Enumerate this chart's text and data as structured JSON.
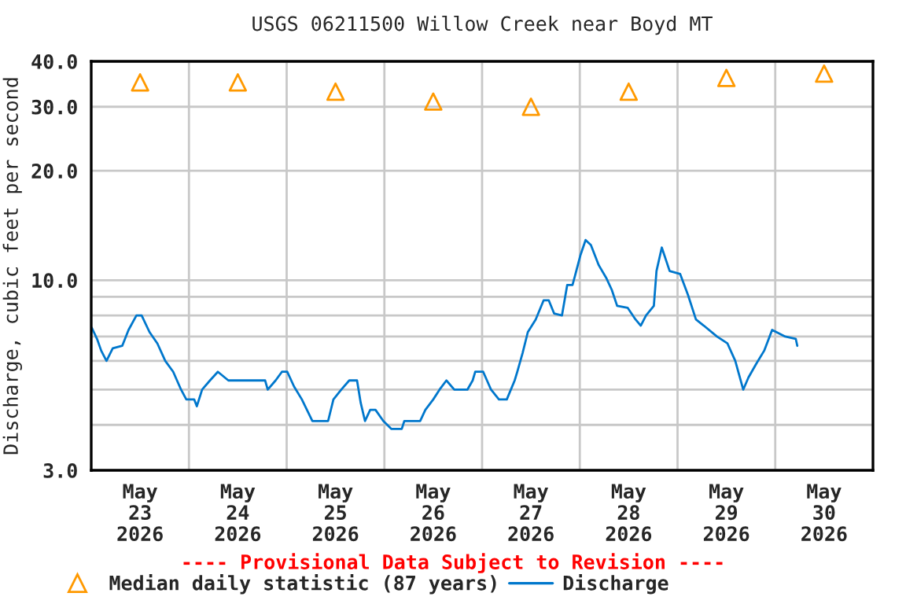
{
  "chart_data": {
    "type": "line",
    "title": "USGS 06211500 Willow Creek near Boyd MT",
    "ylabel": "Discharge, cubic feet per second",
    "annotations": [
      "---- Provisional Data Subject to Revision ----"
    ],
    "log": "y",
    "grid": true,
    "legend": "bottom",
    "xlim": [
      "2026-05-23",
      "2026-05-31"
    ],
    "xticks": [
      {
        "value": "2026-05-23T12:00",
        "label": "May\n23\n2026"
      },
      {
        "value": "2026-05-24T12:00",
        "label": "May\n24\n2026"
      },
      {
        "value": "2026-05-25T12:00",
        "label": "May\n25\n2026"
      },
      {
        "value": "2026-05-26T12:00",
        "label": "May\n26\n2026"
      },
      {
        "value": "2026-05-27T12:00",
        "label": "May\n27\n2026"
      },
      {
        "value": "2026-05-28T12:00",
        "label": "May\n28\n2026"
      },
      {
        "value": "2026-05-29T12:00",
        "label": "May\n29\n2026"
      },
      {
        "value": "2026-05-30T12:00",
        "label": "May\n30\n2026"
      },
      {
        "value": "2026-05-24",
        "label": null
      },
      {
        "value": "2026-05-25",
        "label": null
      },
      {
        "value": "2026-05-26",
        "label": null
      },
      {
        "value": "2026-05-27",
        "label": null
      },
      {
        "value": "2026-05-28",
        "label": null
      },
      {
        "value": "2026-05-29",
        "label": null
      },
      {
        "value": "2026-05-30",
        "label": null
      }
    ],
    "ylim": [
      3,
      40
    ],
    "yticks": [
      {
        "value": 3,
        "label": "3.0"
      },
      {
        "value": 4,
        "label": null
      },
      {
        "value": 5,
        "label": null
      },
      {
        "value": 6,
        "label": null
      },
      {
        "value": 7,
        "label": null
      },
      {
        "value": 8,
        "label": null
      },
      {
        "value": 9,
        "label": null
      },
      {
        "value": 10,
        "label": "10.0"
      },
      {
        "value": 20,
        "label": "20.0"
      },
      {
        "value": 30,
        "label": "30.0"
      },
      {
        "value": 40,
        "label": "40.0"
      }
    ],
    "series": [
      {
        "name": "Median daily statistic (87 years)",
        "type": "scatter",
        "marker": "triangle",
        "color": "#ff9900",
        "x": [
          "2026-05-23T12:00",
          "2026-05-24T12:00",
          "2026-05-25T12:00",
          "2026-05-26T12:00",
          "2026-05-27T12:00",
          "2026-05-28T12:00",
          "2026-05-29T12:00",
          "2026-05-30T12:00"
        ],
        "values": [
          35,
          35,
          33,
          31,
          30,
          33,
          36,
          37
        ]
      },
      {
        "name": "Discharge",
        "marker": "none",
        "line_style": "solid",
        "color": "#0077cc",
        "x": [
          "2026-05-23T00:08",
          "2026-05-23T01:25",
          "2026-05-23T02:27",
          "2026-05-23T03:45",
          "2026-05-23T05:17",
          "2026-05-23T07:37",
          "2026-05-23T09:10",
          "2026-05-23T11:06",
          "2026-05-23T12:23",
          "2026-05-23T14:19",
          "2026-05-23T16:15",
          "2026-05-23T18:11",
          "2026-05-23T20:08",
          "2026-05-23T22:04",
          "2026-05-23T23:21",
          "2026-05-24T01:17",
          "2026-05-24T01:56",
          "2026-05-24T03:14",
          "2026-05-24T05:10",
          "2026-05-24T07:06",
          "2026-05-24T09:41",
          "2026-05-24T13:33",
          "2026-05-24T18:43",
          "2026-05-24T19:21",
          "2026-05-24T21:17",
          "2026-05-24T22:50",
          "2026-05-25T00:08",
          "2026-05-25T01:49",
          "2026-05-25T03:44",
          "2026-05-25T06:19",
          "2026-05-25T10:11",
          "2026-05-25T11:29",
          "2026-05-25T13:25",
          "2026-05-25T15:22",
          "2026-05-25T17:17",
          "2026-05-25T18:11",
          "2026-05-25T19:14",
          "2026-05-25T20:31",
          "2026-05-25T21:49",
          "2026-05-25T23:44",
          "2026-05-26T01:41",
          "2026-05-26T04:16",
          "2026-05-26T04:54",
          "2026-05-26T08:47",
          "2026-05-26T10:04",
          "2026-05-26T12:00",
          "2026-05-26T13:33",
          "2026-05-26T15:14",
          "2026-05-26T17:10",
          "2026-05-26T20:23",
          "2026-05-26T21:41",
          "2026-05-26T22:19",
          "2026-05-27T00:16",
          "2026-05-27T02:12",
          "2026-05-27T04:08",
          "2026-05-27T06:04",
          "2026-05-27T08:00",
          "2026-05-27T08:39",
          "2026-05-27T09:56",
          "2026-05-27T11:14",
          "2026-05-27T13:10",
          "2026-05-27T15:06",
          "2026-05-27T16:23",
          "2026-05-27T17:41",
          "2026-05-27T19:37",
          "2026-05-27T20:54",
          "2026-05-27T22:12",
          "2026-05-27T22:50",
          "2026-05-28T00:08",
          "2026-05-28T01:25",
          "2026-05-28T02:43",
          "2026-05-28T04:39",
          "2026-05-28T06:35",
          "2026-05-28T07:52",
          "2026-05-28T09:10",
          "2026-05-28T11:44",
          "2026-05-28T13:41",
          "2026-05-28T14:58",
          "2026-05-28T16:16",
          "2026-05-28T18:11",
          "2026-05-28T18:50",
          "2026-05-28T20:08",
          "2026-05-28T22:04",
          "2026-05-29T00:39",
          "2026-05-29T02:35",
          "2026-05-29T04:31",
          "2026-05-29T06:27",
          "2026-05-29T09:41",
          "2026-05-29T12:16",
          "2026-05-29T14:11",
          "2026-05-29T16:08",
          "2026-05-29T17:25",
          "2026-05-29T19:22",
          "2026-05-29T21:17",
          "2026-05-29T23:14",
          "2026-05-30T02:27",
          "2026-05-30T05:02",
          "2026-05-30T05:25"
        ],
        "values": [
          7.4,
          6.9,
          6.4,
          6.0,
          6.5,
          6.6,
          7.3,
          8.0,
          8.0,
          7.2,
          6.7,
          6.0,
          5.6,
          5.0,
          4.7,
          4.7,
          4.5,
          5.0,
          5.3,
          5.6,
          5.3,
          5.3,
          5.3,
          5.0,
          5.3,
          5.6,
          5.6,
          5.1,
          4.7,
          4.1,
          4.1,
          4.7,
          5.0,
          5.3,
          5.3,
          4.6,
          4.1,
          4.4,
          4.4,
          4.1,
          3.9,
          3.9,
          4.1,
          4.1,
          4.4,
          4.7,
          5.0,
          5.3,
          5.0,
          5.0,
          5.3,
          5.6,
          5.6,
          5.0,
          4.7,
          4.7,
          5.3,
          5.6,
          6.3,
          7.2,
          7.8,
          8.8,
          8.8,
          8.1,
          8.0,
          9.7,
          9.7,
          10.3,
          11.7,
          12.9,
          12.5,
          11.0,
          10.1,
          9.4,
          8.5,
          8.4,
          7.8,
          7.5,
          8.0,
          8.5,
          10.6,
          12.3,
          10.6,
          10.4,
          9.1,
          7.8,
          7.5,
          7.0,
          6.7,
          6.0,
          5.0,
          5.4,
          5.9,
          6.4,
          7.3,
          7.0,
          6.9,
          6.6
        ]
      }
    ]
  }
}
